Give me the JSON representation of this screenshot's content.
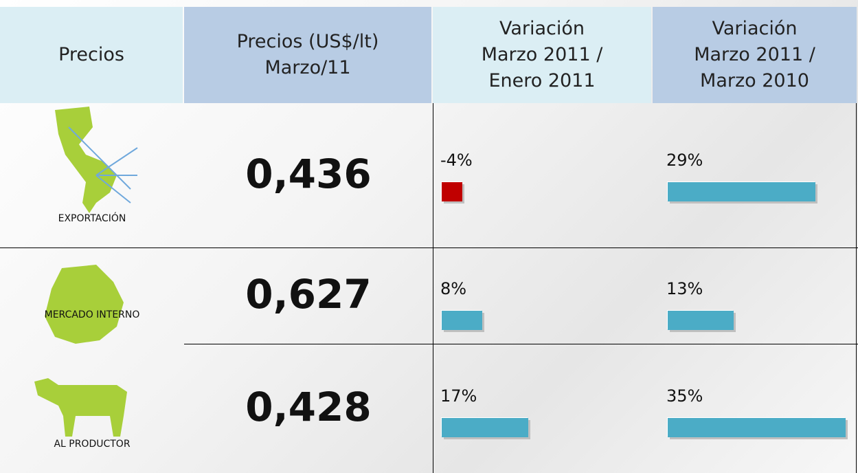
{
  "header": [
    [
      "Precios"
    ],
    [
      "Precios (US$/lt)",
      "Marzo/11"
    ],
    [
      "Variación",
      "Marzo 2011 /",
      "Enero 2011"
    ],
    [
      "Variación",
      "Marzo 2011 /",
      "Marzo 2010"
    ]
  ],
  "rows": [
    {
      "label": "EXPORTACIÓN",
      "price": "0,436",
      "var_jan": {
        "value": -4,
        "label": "-4%"
      },
      "var_mar": {
        "value": 29,
        "label": "29%"
      }
    },
    {
      "label": "MERCADO INTERNO",
      "price": "0,627",
      "var_jan": {
        "value": 8,
        "label": "8%"
      },
      "var_mar": {
        "value": 13,
        "label": "13%"
      }
    },
    {
      "label": "AL PRODUCTOR",
      "price": "0,428",
      "var_jan": {
        "value": 17,
        "label": "17%"
      },
      "var_mar": {
        "value": 35,
        "label": "35%"
      }
    }
  ],
  "positive_color": "#4bacc6",
  "negative_color": "#c00000"
}
